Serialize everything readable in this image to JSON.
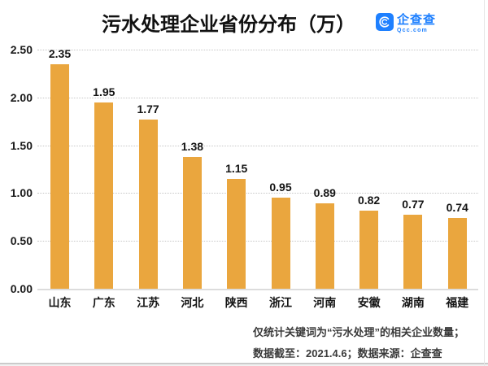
{
  "header": {
    "title": "污水处理企业省份分布（万）",
    "logo": {
      "brand": "企查查",
      "domain": "Qcc.com",
      "color": "#1E80FF",
      "icon": "qcc-swirl-icon"
    }
  },
  "chart_data": {
    "type": "bar",
    "title": "污水处理企业省份分布（万）",
    "categories": [
      "山东",
      "广东",
      "江苏",
      "河北",
      "陕西",
      "浙江",
      "河南",
      "安徽",
      "湖南",
      "福建"
    ],
    "values": [
      2.35,
      1.95,
      1.77,
      1.38,
      1.15,
      0.95,
      0.89,
      0.82,
      0.77,
      0.74
    ],
    "value_labels": [
      "2.35",
      "1.95",
      "1.77",
      "1.38",
      "1.15",
      "0.95",
      "0.89",
      "0.82",
      "0.77",
      "0.74"
    ],
    "xlabel": "",
    "ylabel": "",
    "ylim": [
      0,
      2.5
    ],
    "yticks": [
      0,
      0.5,
      1,
      1.5,
      2,
      2.5
    ],
    "ytick_labels": [
      "0.00",
      "0.50",
      "1.00",
      "1.50",
      "2.00",
      "2.50"
    ],
    "grid": "horizontal-dotted",
    "legend": "none",
    "bar_color": "#EAA63E"
  },
  "footer": {
    "line1": "仅统计关键词为“污水处理”的相关企业数量；",
    "line2": "数据截至：2021.4.6；数据来源：企查查"
  }
}
